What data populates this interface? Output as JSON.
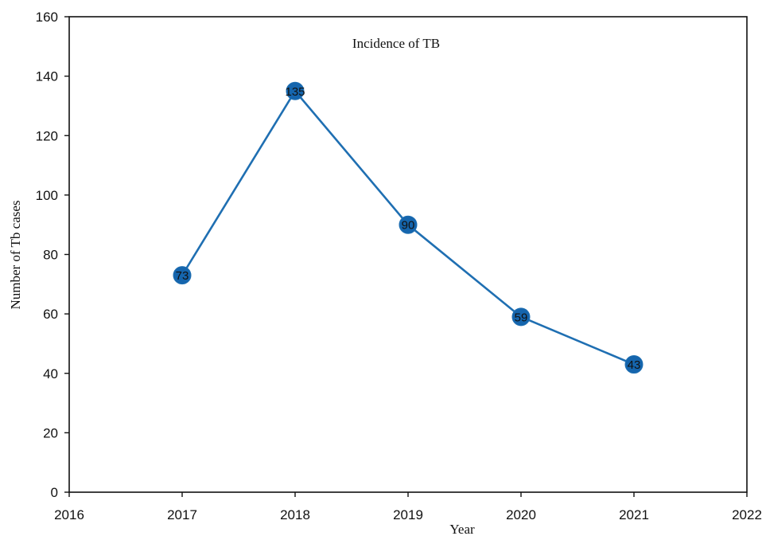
{
  "chart_data": {
    "type": "line",
    "title": "Incidence of TB",
    "xlabel": "Year",
    "ylabel": "Number of Tb cases",
    "xlim": [
      2016,
      2022
    ],
    "ylim": [
      0,
      160
    ],
    "xticks": [
      2016,
      2017,
      2018,
      2019,
      2020,
      2021,
      2022
    ],
    "yticks": [
      0,
      20,
      40,
      60,
      80,
      100,
      120,
      140,
      160
    ],
    "grid": false,
    "legend": "none",
    "series": [
      {
        "x": [
          2017,
          2018,
          2019,
          2020,
          2021
        ],
        "y": [
          73,
          135,
          90,
          59,
          43
        ],
        "data_labels": [
          "73",
          "135",
          "90",
          "59",
          "43"
        ],
        "color": "#1f6fb2",
        "marker_color": "#1565ad"
      }
    ]
  }
}
